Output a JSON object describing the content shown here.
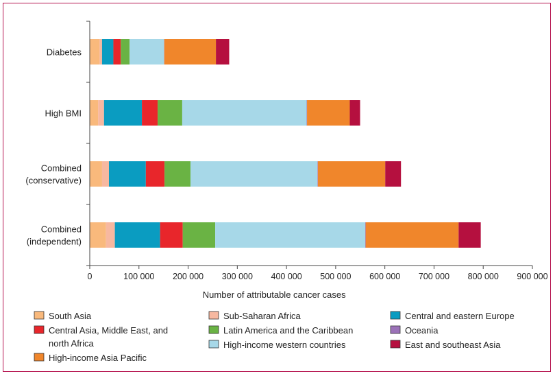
{
  "chart_data": {
    "type": "bar",
    "orientation": "horizontal",
    "stacked": true,
    "categories": [
      "Diabetes",
      "High BMI",
      "Combined (conservative)",
      "Combined (independent)"
    ],
    "category_lines": [
      [
        "Diabetes"
      ],
      [
        "High BMI"
      ],
      [
        "Combined",
        "(conservative)"
      ],
      [
        "Combined",
        "(independent)"
      ]
    ],
    "xlabel": "Number of attributable cancer cases",
    "xlim": [
      0,
      900000
    ],
    "xticks": [
      0,
      100000,
      200000,
      300000,
      400000,
      500000,
      600000,
      700000,
      800000,
      900000
    ],
    "xtick_labels": [
      "0",
      "100 000",
      "200 000",
      "300 000",
      "400 000",
      "500 000",
      "600 000",
      "700 000",
      "800 000",
      "900 000"
    ],
    "grid": false,
    "legend_position": "bottom",
    "series": [
      {
        "name": "South Asia",
        "color": "#f9b97c",
        "values": [
          20000,
          17000,
          25000,
          33000
        ]
      },
      {
        "name": "Sub-Saharan Africa",
        "color": "#f7b8a0",
        "values": [
          5000,
          12000,
          14000,
          18000
        ]
      },
      {
        "name": "Central and eastern Europe",
        "color": "#0a9cc1",
        "values": [
          23000,
          77000,
          75000,
          92000
        ]
      },
      {
        "name": "Central Asia, Middle East, and north Africa",
        "color": "#e8262b",
        "values": [
          15000,
          32000,
          38000,
          46000
        ]
      },
      {
        "name": "Latin America and the Caribbean",
        "color": "#6ab344",
        "values": [
          18000,
          50000,
          53000,
          66000
        ]
      },
      {
        "name": "High-income western countries",
        "color": "#a7d8e8",
        "values": [
          70000,
          253000,
          258000,
          305000
        ]
      },
      {
        "name": "Oceania",
        "color": "#9b72b8",
        "values": [
          500,
          700,
          800,
          1000
        ]
      },
      {
        "name": "East and southeast Asia",
        "color": "#f0862b",
        "values": [
          105000,
          87000,
          137000,
          189000
        ]
      },
      {
        "name": "High-income Asia Pacific",
        "color": "#b5103f",
        "values": [
          27000,
          21000,
          32000,
          45000
        ]
      }
    ],
    "legend_lines": [
      [
        "South Asia"
      ],
      [
        "Sub-Saharan Africa"
      ],
      [
        "Central and eastern Europe"
      ],
      [
        "Central Asia, Middle East, and",
        "north Africa"
      ],
      [
        "Latin America and the Caribbean"
      ],
      [
        "High-income western countries"
      ],
      [
        "Oceania"
      ],
      [
        "High-income Asia Pacific"
      ],
      [
        "East and southeast Asia"
      ]
    ],
    "legend_order": [
      0,
      1,
      2,
      3,
      4,
      5,
      6,
      8,
      7
    ]
  }
}
